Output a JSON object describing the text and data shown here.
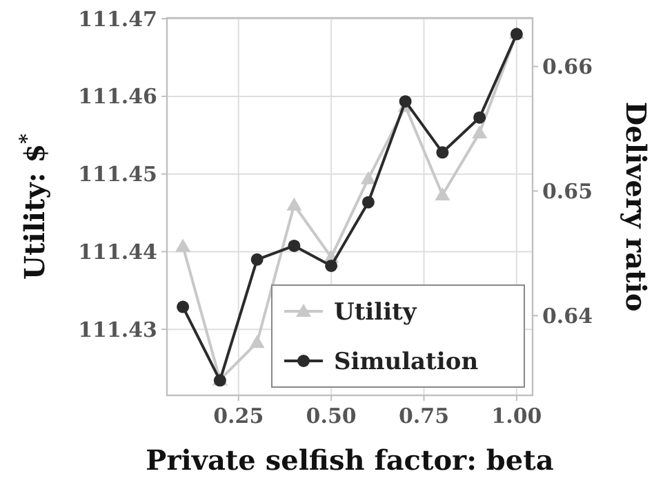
{
  "chart_data": {
    "type": "line",
    "xlabel": "Private selfish factor: beta",
    "ylabel": "Utility: $$^{*}$",
    "y2label": "Delivery ratio",
    "x": [
      0.1,
      0.2,
      0.3,
      0.4,
      0.5,
      0.6,
      0.7,
      0.8,
      0.9,
      1.0
    ],
    "series": [
      {
        "name": "Utility",
        "color": "#c8c8c8",
        "marker": "triangle",
        "values": [
          111.4407,
          111.4235,
          111.4283,
          111.446,
          111.4393,
          111.4494,
          111.4587,
          111.4473,
          111.4553,
          111.4681
        ]
      },
      {
        "name": "Simulation",
        "color": "#2b2b2b",
        "marker": "circle",
        "axis": "y2",
        "values": [
          0.6407,
          0.6348,
          0.6445,
          0.6456,
          0.644,
          0.6491,
          0.6572,
          0.6531,
          0.6559,
          0.6626
        ]
      }
    ],
    "xlim": [
      0.057,
      1.043
    ],
    "xticks": [
      {
        "value": 0.25,
        "label": "0.25"
      },
      {
        "value": 0.5,
        "label": "0.50"
      },
      {
        "value": 0.75,
        "label": "0.75"
      },
      {
        "value": 1.0,
        "label": "1.00"
      }
    ],
    "ylim": [
      111.4215,
      111.4701
    ],
    "yticks": [
      111.43,
      111.44,
      111.45,
      111.46,
      111.47
    ],
    "y2lim": [
      0.6336,
      0.6639
    ],
    "y2ticks": [
      0.64,
      0.65,
      0.66
    ],
    "grid": true,
    "legend": "bottom right"
  }
}
